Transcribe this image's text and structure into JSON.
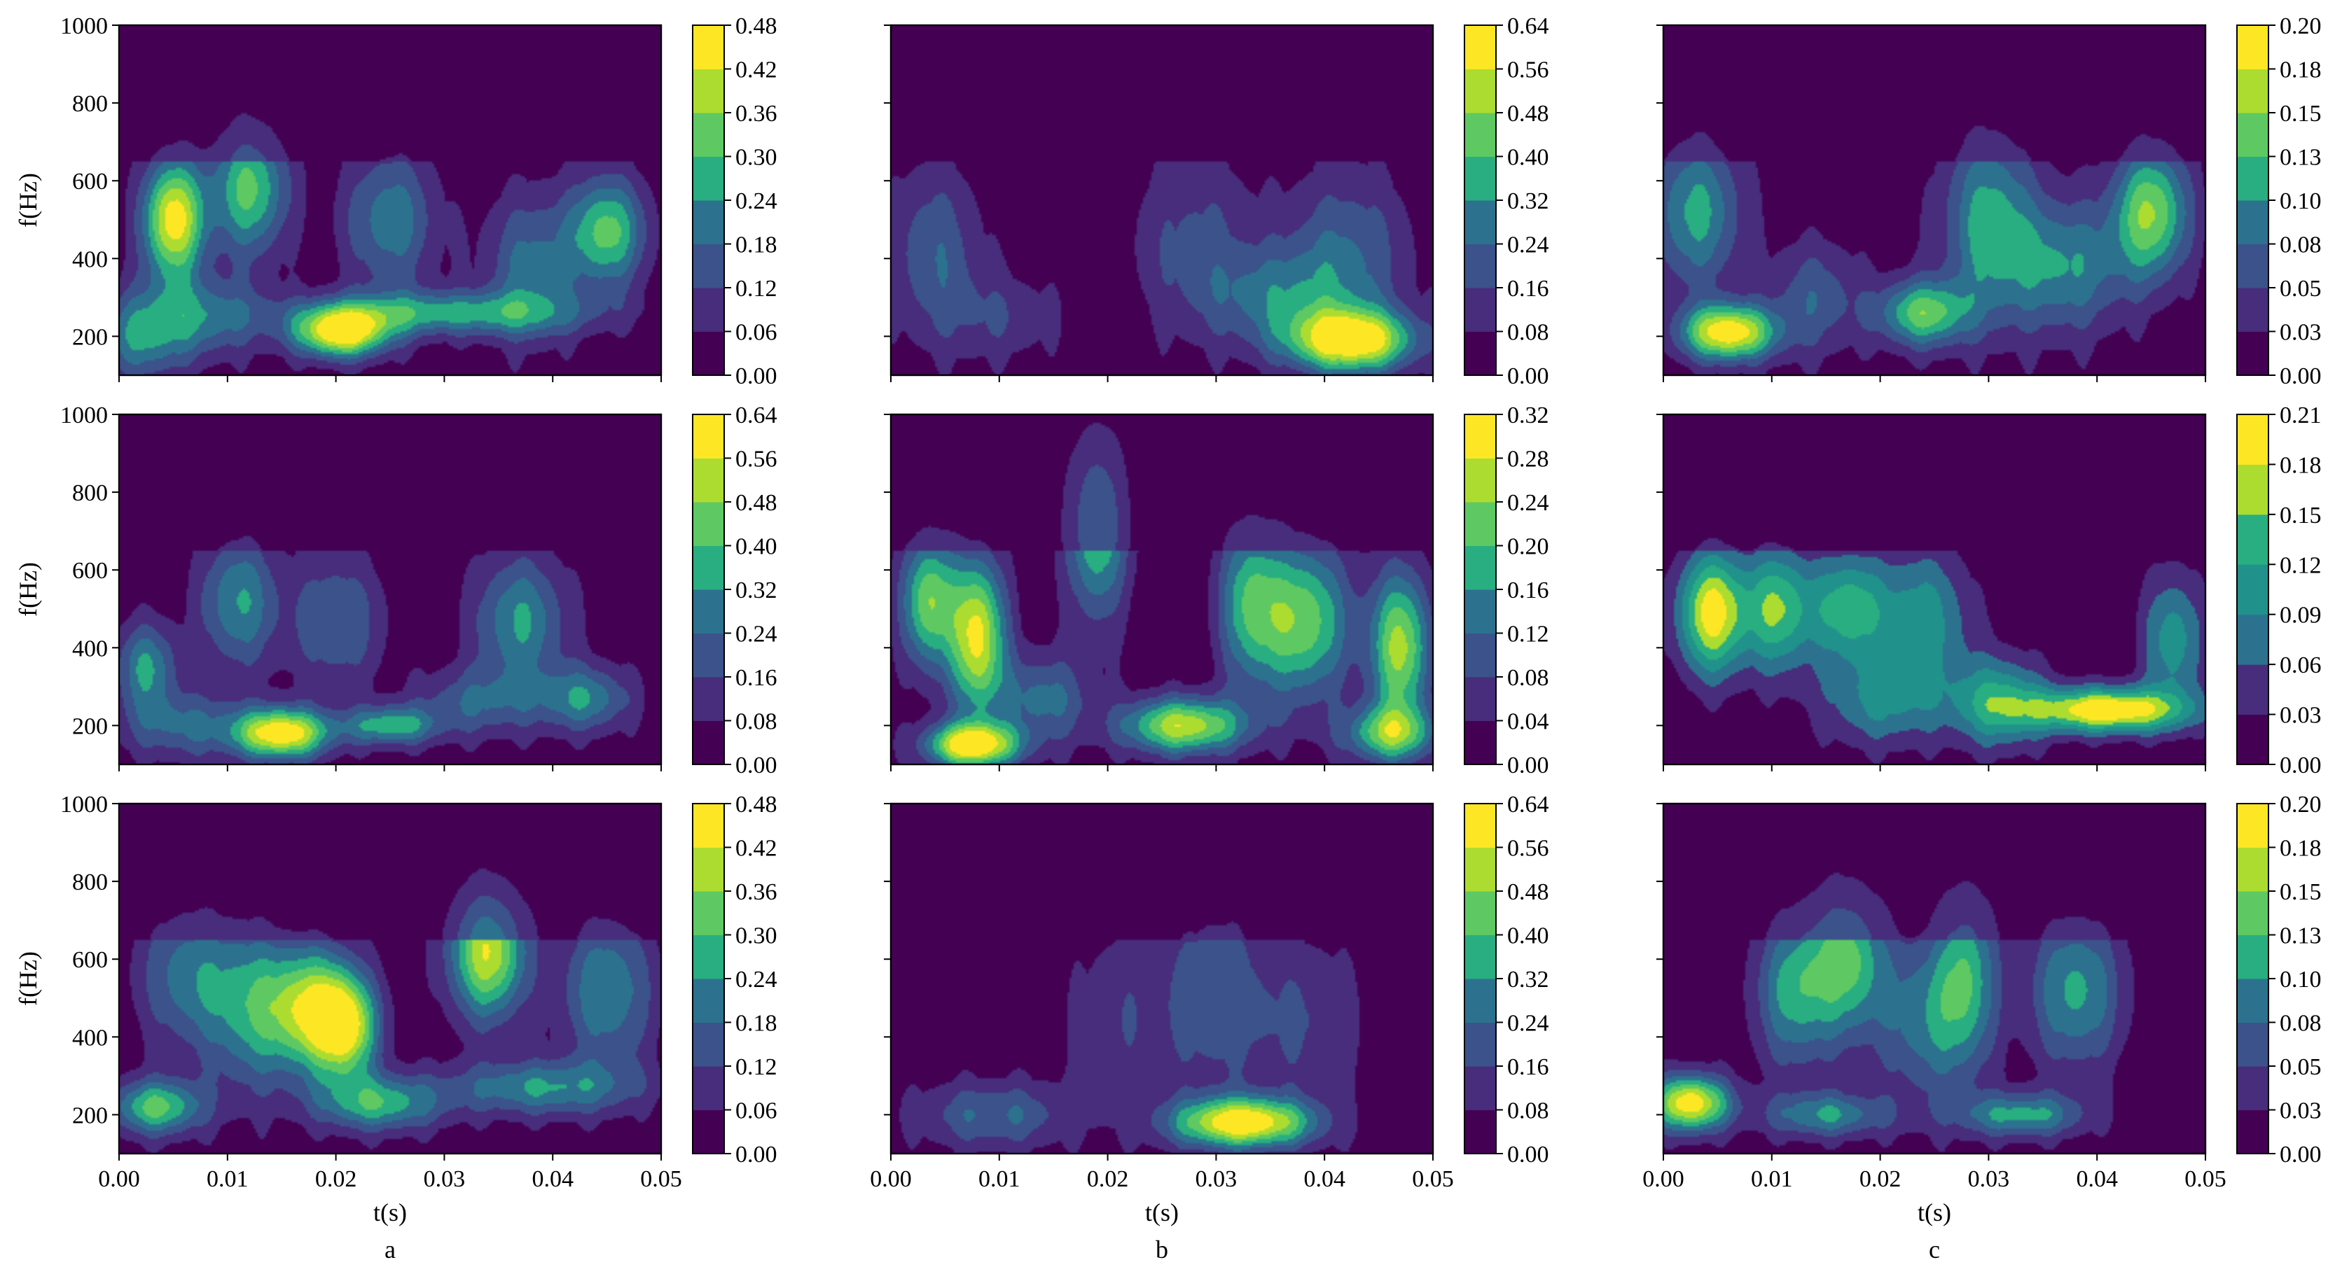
{
  "figure": {
    "column_labels": [
      "a",
      "b",
      "c"
    ]
  },
  "chart_data": [
    {
      "type": "heatmap",
      "panel": "a-top",
      "column": "a",
      "row": 1,
      "title": "",
      "xlabel": "",
      "ylabel": "f(Hz)",
      "xlim": [
        0,
        0.05
      ],
      "ylim": [
        100,
        1000
      ],
      "xticks": [
        "0.00",
        "0.01",
        "0.02",
        "0.03",
        "0.04",
        "0.05"
      ],
      "yticks": [
        200,
        400,
        600,
        800,
        1000
      ],
      "colorbar": {
        "ticks": [
          "0.00",
          "0.06",
          "0.12",
          "0.18",
          "0.24",
          "0.30",
          "0.36",
          "0.42",
          "0.48"
        ],
        "min": 0,
        "max": 0.48
      },
      "hotspots": [
        {
          "t": 0.005,
          "f": 500,
          "value": 0.44,
          "st": 0.002,
          "sf": 110
        },
        {
          "t": 0.0205,
          "f": 210,
          "value": 0.46,
          "st": 0.003,
          "sf": 45
        },
        {
          "t": 0.012,
          "f": 580,
          "value": 0.3,
          "st": 0.0025,
          "sf": 120
        },
        {
          "t": 0.045,
          "f": 470,
          "value": 0.3,
          "st": 0.0025,
          "sf": 100
        },
        {
          "t": 0.03,
          "f": 260,
          "value": 0.24,
          "st": 0.009,
          "sf": 40
        },
        {
          "t": 0.002,
          "f": 200,
          "value": 0.2,
          "st": 0.003,
          "sf": 80
        },
        {
          "t": 0.025,
          "f": 500,
          "value": 0.2,
          "st": 0.003,
          "sf": 130
        },
        {
          "t": 0.038,
          "f": 380,
          "value": 0.18,
          "st": 0.003,
          "sf": 130
        },
        {
          "t": 0.008,
          "f": 250,
          "value": 0.18,
          "st": 0.004,
          "sf": 70
        }
      ]
    },
    {
      "type": "heatmap",
      "panel": "b-top",
      "column": "b",
      "row": 1,
      "title": "",
      "xlabel": "",
      "ylabel": "",
      "xlim": [
        0,
        0.05
      ],
      "ylim": [
        100,
        1000
      ],
      "xticks": [
        "0.00",
        "0.01",
        "0.02",
        "0.03",
        "0.04",
        "0.05"
      ],
      "yticks": [
        200,
        400,
        600,
        800,
        1000
      ],
      "colorbar": {
        "ticks": [
          "0.00",
          "0.08",
          "0.16",
          "0.24",
          "0.32",
          "0.40",
          "0.48",
          "0.56",
          "0.64"
        ],
        "min": 0,
        "max": 0.64
      },
      "hotspots": [
        {
          "t": 0.0425,
          "f": 190,
          "value": 0.62,
          "st": 0.004,
          "sf": 55
        },
        {
          "t": 0.036,
          "f": 300,
          "value": 0.22,
          "st": 0.005,
          "sf": 90
        },
        {
          "t": 0.004,
          "f": 420,
          "value": 0.2,
          "st": 0.003,
          "sf": 150
        },
        {
          "t": 0.028,
          "f": 450,
          "value": 0.15,
          "st": 0.004,
          "sf": 160
        },
        {
          "t": 0.01,
          "f": 250,
          "value": 0.12,
          "st": 0.004,
          "sf": 80
        },
        {
          "t": 0.042,
          "f": 420,
          "value": 0.2,
          "st": 0.004,
          "sf": 150
        }
      ]
    },
    {
      "type": "heatmap",
      "panel": "c-top",
      "column": "c",
      "row": 1,
      "title": "",
      "xlabel": "",
      "ylabel": "",
      "xlim": [
        0,
        0.05
      ],
      "ylim": [
        100,
        1000
      ],
      "xticks": [
        "0.00",
        "0.01",
        "0.02",
        "0.03",
        "0.04",
        "0.05"
      ],
      "yticks": [
        200,
        400,
        600,
        800,
        1000
      ],
      "colorbar": {
        "ticks": [
          "0.00",
          "0.03",
          "0.05",
          "0.08",
          "0.10",
          "0.13",
          "0.15",
          "0.18",
          "0.20"
        ],
        "min": 0,
        "max": 0.2
      },
      "hotspots": [
        {
          "t": 0.006,
          "f": 210,
          "value": 0.19,
          "st": 0.003,
          "sf": 50
        },
        {
          "t": 0.045,
          "f": 520,
          "value": 0.14,
          "st": 0.0025,
          "sf": 120
        },
        {
          "t": 0.024,
          "f": 260,
          "value": 0.13,
          "st": 0.003,
          "sf": 60
        },
        {
          "t": 0.003,
          "f": 520,
          "value": 0.1,
          "st": 0.003,
          "sf": 140
        },
        {
          "t": 0.03,
          "f": 500,
          "value": 0.1,
          "st": 0.003,
          "sf": 170
        },
        {
          "t": 0.037,
          "f": 380,
          "value": 0.09,
          "st": 0.004,
          "sf": 120
        },
        {
          "t": 0.014,
          "f": 300,
          "value": 0.06,
          "st": 0.003,
          "sf": 100
        }
      ]
    },
    {
      "type": "heatmap",
      "panel": "a-mid",
      "column": "a",
      "row": 2,
      "title": "",
      "xlabel": "",
      "ylabel": "f(Hz)",
      "xlim": [
        0,
        0.05
      ],
      "ylim": [
        100,
        1000
      ],
      "xticks": [
        "0.00",
        "0.01",
        "0.02",
        "0.03",
        "0.04",
        "0.05"
      ],
      "yticks": [
        200,
        400,
        600,
        800,
        1000
      ],
      "colorbar": {
        "ticks": [
          "0.00",
          "0.08",
          "0.16",
          "0.24",
          "0.32",
          "0.40",
          "0.48",
          "0.56",
          "0.64"
        ],
        "min": 0,
        "max": 0.64
      },
      "hotspots": [
        {
          "t": 0.015,
          "f": 180,
          "value": 0.62,
          "st": 0.003,
          "sf": 45
        },
        {
          "t": 0.025,
          "f": 200,
          "value": 0.34,
          "st": 0.003,
          "sf": 35
        },
        {
          "t": 0.011,
          "f": 520,
          "value": 0.3,
          "st": 0.0025,
          "sf": 120
        },
        {
          "t": 0.0025,
          "f": 350,
          "value": 0.3,
          "st": 0.002,
          "sf": 80
        },
        {
          "t": 0.037,
          "f": 470,
          "value": 0.3,
          "st": 0.003,
          "sf": 120
        },
        {
          "t": 0.043,
          "f": 270,
          "value": 0.28,
          "st": 0.003,
          "sf": 60
        },
        {
          "t": 0.02,
          "f": 470,
          "value": 0.22,
          "st": 0.003,
          "sf": 120
        },
        {
          "t": 0.006,
          "f": 200,
          "value": 0.22,
          "st": 0.004,
          "sf": 60
        },
        {
          "t": 0.033,
          "f": 260,
          "value": 0.2,
          "st": 0.004,
          "sf": 60
        }
      ]
    },
    {
      "type": "heatmap",
      "panel": "b-mid",
      "column": "b",
      "row": 2,
      "title": "",
      "xlabel": "",
      "ylabel": "",
      "xlim": [
        0,
        0.05
      ],
      "ylim": [
        100,
        1000
      ],
      "xticks": [
        "0.00",
        "0.01",
        "0.02",
        "0.03",
        "0.04",
        "0.05"
      ],
      "yticks": [
        200,
        400,
        600,
        800,
        1000
      ],
      "colorbar": {
        "ticks": [
          "0.00",
          "0.04",
          "0.08",
          "0.12",
          "0.16",
          "0.20",
          "0.24",
          "0.28",
          "0.32"
        ],
        "min": 0,
        "max": 0.32
      },
      "hotspots": [
        {
          "t": 0.0075,
          "f": 150,
          "value": 0.31,
          "st": 0.003,
          "sf": 40
        },
        {
          "t": 0.008,
          "f": 430,
          "value": 0.28,
          "st": 0.0018,
          "sf": 140
        },
        {
          "t": 0.0035,
          "f": 520,
          "value": 0.22,
          "st": 0.0018,
          "sf": 120
        },
        {
          "t": 0.027,
          "f": 200,
          "value": 0.26,
          "st": 0.004,
          "sf": 50
        },
        {
          "t": 0.019,
          "f": 720,
          "value": 0.2,
          "st": 0.002,
          "sf": 170
        },
        {
          "t": 0.038,
          "f": 470,
          "value": 0.22,
          "st": 0.003,
          "sf": 140
        },
        {
          "t": 0.047,
          "f": 400,
          "value": 0.24,
          "st": 0.002,
          "sf": 140
        },
        {
          "t": 0.046,
          "f": 180,
          "value": 0.2,
          "st": 0.003,
          "sf": 50
        },
        {
          "t": 0.033,
          "f": 520,
          "value": 0.16,
          "st": 0.002,
          "sf": 150
        },
        {
          "t": 0.014,
          "f": 270,
          "value": 0.12,
          "st": 0.003,
          "sf": 80
        }
      ]
    },
    {
      "type": "heatmap",
      "panel": "c-mid",
      "column": "c",
      "row": 2,
      "title": "",
      "xlabel": "",
      "ylabel": "",
      "xlim": [
        0,
        0.05
      ],
      "ylim": [
        100,
        1000
      ],
      "xticks": [
        "0.00",
        "0.01",
        "0.02",
        "0.03",
        "0.04",
        "0.05"
      ],
      "yticks": [
        200,
        400,
        600,
        800,
        1000
      ],
      "colorbar": {
        "ticks": [
          "0.00",
          "0.03",
          "0.06",
          "0.09",
          "0.12",
          "0.15",
          "0.18",
          "0.21"
        ],
        "min": 0,
        "max": 0.21
      },
      "hotspots": [
        {
          "t": 0.0045,
          "f": 490,
          "value": 0.19,
          "st": 0.0022,
          "sf": 110
        },
        {
          "t": 0.041,
          "f": 240,
          "value": 0.21,
          "st": 0.005,
          "sf": 40
        },
        {
          "t": 0.0105,
          "f": 500,
          "value": 0.14,
          "st": 0.0022,
          "sf": 110
        },
        {
          "t": 0.017,
          "f": 500,
          "value": 0.13,
          "st": 0.0025,
          "sf": 100
        },
        {
          "t": 0.024,
          "f": 470,
          "value": 0.1,
          "st": 0.003,
          "sf": 130
        },
        {
          "t": 0.031,
          "f": 260,
          "value": 0.12,
          "st": 0.003,
          "sf": 80
        },
        {
          "t": 0.047,
          "f": 420,
          "value": 0.1,
          "st": 0.002,
          "sf": 120
        },
        {
          "t": 0.02,
          "f": 260,
          "value": 0.08,
          "st": 0.004,
          "sf": 80
        }
      ]
    },
    {
      "type": "heatmap",
      "panel": "a-bot",
      "column": "a",
      "row": 3,
      "title": "",
      "xlabel": "t(s)",
      "ylabel": "f(Hz)",
      "xlim": [
        0,
        0.05
      ],
      "ylim": [
        100,
        1000
      ],
      "xticks": [
        "0.00",
        "0.01",
        "0.02",
        "0.03",
        "0.04",
        "0.05"
      ],
      "yticks": [
        200,
        400,
        600,
        800,
        1000
      ],
      "colorbar": {
        "ticks": [
          "0.00",
          "0.06",
          "0.12",
          "0.18",
          "0.24",
          "0.30",
          "0.36",
          "0.42",
          "0.48"
        ],
        "min": 0,
        "max": 0.48
      },
      "hotspots": [
        {
          "t": 0.034,
          "f": 620,
          "value": 0.4,
          "st": 0.0025,
          "sf": 120
        },
        {
          "t": 0.018,
          "f": 470,
          "value": 0.38,
          "st": 0.003,
          "sf": 110
        },
        {
          "t": 0.021,
          "f": 420,
          "value": 0.32,
          "st": 0.002,
          "sf": 90
        },
        {
          "t": 0.0035,
          "f": 220,
          "value": 0.3,
          "st": 0.003,
          "sf": 50
        },
        {
          "t": 0.024,
          "f": 230,
          "value": 0.26,
          "st": 0.004,
          "sf": 50
        },
        {
          "t": 0.045,
          "f": 520,
          "value": 0.22,
          "st": 0.003,
          "sf": 140
        },
        {
          "t": 0.039,
          "f": 270,
          "value": 0.22,
          "st": 0.006,
          "sf": 50
        },
        {
          "t": 0.012,
          "f": 480,
          "value": 0.22,
          "st": 0.003,
          "sf": 150
        },
        {
          "t": 0.006,
          "f": 560,
          "value": 0.18,
          "st": 0.003,
          "sf": 130
        }
      ]
    },
    {
      "type": "heatmap",
      "panel": "b-bot",
      "column": "b",
      "row": 3,
      "title": "",
      "xlabel": "t(s)",
      "ylabel": "",
      "xlim": [
        0,
        0.05
      ],
      "ylim": [
        100,
        1000
      ],
      "xticks": [
        "0.00",
        "0.01",
        "0.02",
        "0.03",
        "0.04",
        "0.05"
      ],
      "yticks": [
        200,
        400,
        600,
        800,
        1000
      ],
      "colorbar": {
        "ticks": [
          "0.00",
          "0.08",
          "0.16",
          "0.24",
          "0.32",
          "0.40",
          "0.48",
          "0.56",
          "0.64"
        ],
        "min": 0,
        "max": 0.64
      },
      "hotspots": [
        {
          "t": 0.0325,
          "f": 180,
          "value": 0.62,
          "st": 0.0045,
          "sf": 45
        },
        {
          "t": 0.0095,
          "f": 200,
          "value": 0.22,
          "st": 0.005,
          "sf": 60
        },
        {
          "t": 0.03,
          "f": 520,
          "value": 0.18,
          "st": 0.003,
          "sf": 180
        },
        {
          "t": 0.038,
          "f": 440,
          "value": 0.14,
          "st": 0.004,
          "sf": 150
        },
        {
          "t": 0.022,
          "f": 450,
          "value": 0.12,
          "st": 0.004,
          "sf": 170
        }
      ]
    },
    {
      "type": "heatmap",
      "panel": "c-bot",
      "column": "c",
      "row": 3,
      "title": "",
      "xlabel": "t(s)",
      "ylabel": "",
      "xlim": [
        0,
        0.05
      ],
      "ylim": [
        100,
        1000
      ],
      "xticks": [
        "0.00",
        "0.01",
        "0.02",
        "0.03",
        "0.04",
        "0.05"
      ],
      "yticks": [
        200,
        400,
        600,
        800,
        1000
      ],
      "colorbar": {
        "ticks": [
          "0.00",
          "0.03",
          "0.05",
          "0.08",
          "0.10",
          "0.13",
          "0.15",
          "0.18",
          "0.20"
        ],
        "min": 0,
        "max": 0.2
      },
      "hotspots": [
        {
          "t": 0.0025,
          "f": 230,
          "value": 0.19,
          "st": 0.0025,
          "sf": 50
        },
        {
          "t": 0.017,
          "f": 600,
          "value": 0.12,
          "st": 0.0025,
          "sf": 140
        },
        {
          "t": 0.012,
          "f": 520,
          "value": 0.1,
          "st": 0.0025,
          "sf": 140
        },
        {
          "t": 0.038,
          "f": 520,
          "value": 0.1,
          "st": 0.003,
          "sf": 140
        },
        {
          "t": 0.028,
          "f": 560,
          "value": 0.1,
          "st": 0.002,
          "sf": 170
        },
        {
          "t": 0.033,
          "f": 200,
          "value": 0.1,
          "st": 0.004,
          "sf": 40
        },
        {
          "t": 0.015,
          "f": 200,
          "value": 0.09,
          "st": 0.004,
          "sf": 40
        },
        {
          "t": 0.024,
          "f": 450,
          "value": 0.08,
          "st": 0.003,
          "sf": 150
        }
      ]
    }
  ]
}
